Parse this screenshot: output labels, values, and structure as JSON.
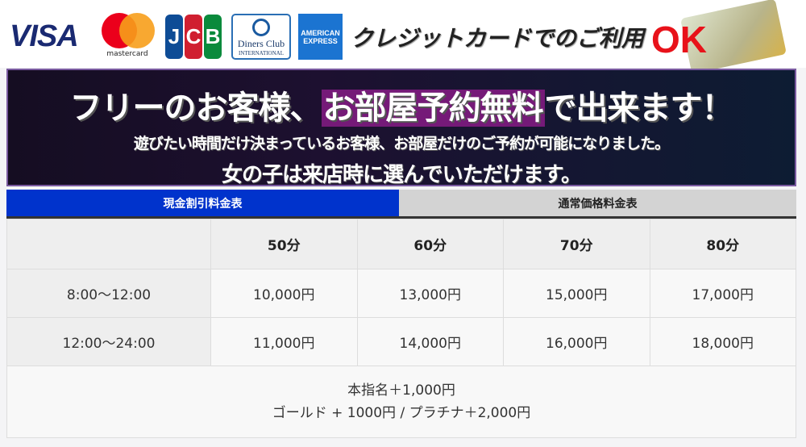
{
  "cards": {
    "visa": "VISA",
    "mastercard": "mastercard",
    "jcb": [
      "J",
      "C",
      "B"
    ],
    "diners": [
      "Diners Club",
      "INTERNATIONAL"
    ],
    "amex": [
      "AMERICAN",
      "EXPRESS"
    ],
    "text": "クレジットカードでのご利用",
    "ok": "OK"
  },
  "banner": {
    "line1_pre": "フリーのお客様、",
    "line1_highlight": "お部屋予約無料",
    "line1_post": "で出来ます！",
    "line2": "遊びたい時間だけ決まっているお客様、お部屋だけのご予約が可能になりました。",
    "line3": "女の子は来店時に選んでいただけます。",
    "highlight_color": "#751a78"
  },
  "tabs": [
    {
      "label": "現金割引料金表",
      "active": true
    },
    {
      "label": "通常価格料金表",
      "active": false
    }
  ],
  "colors": {
    "active_tab": "#0033cc"
  },
  "table": {
    "headers": [
      "",
      "50分",
      "60分",
      "70分",
      "80分"
    ],
    "rows": [
      {
        "time": "8:00〜12:00",
        "prices": [
          "10,000円",
          "13,000円",
          "15,000円",
          "17,000円"
        ]
      },
      {
        "time": "12:00〜24:00",
        "prices": [
          "11,000円",
          "14,000円",
          "16,000円",
          "18,000円"
        ]
      }
    ],
    "footer": [
      "本指名＋1,000円",
      "ゴールド + 1000円 / プラチナ＋2,000円"
    ]
  }
}
